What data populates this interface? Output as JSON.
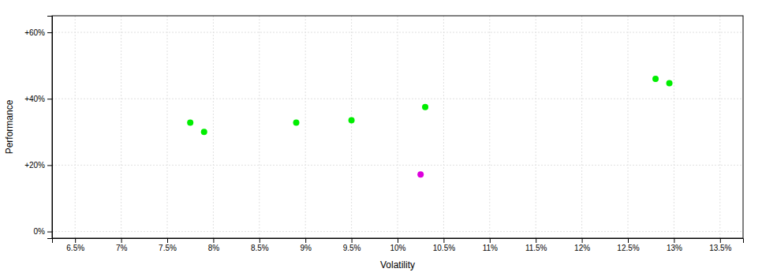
{
  "chart_data": {
    "type": "scatter",
    "xlabel": "Volatility",
    "ylabel": "Performance",
    "xlim": [
      0.0625,
      0.1375
    ],
    "ylim": [
      -0.02,
      0.65
    ],
    "xticks": [
      {
        "value": 0.065,
        "label": "6.5%"
      },
      {
        "value": 0.07,
        "label": "7%"
      },
      {
        "value": 0.075,
        "label": "7.5%"
      },
      {
        "value": 0.08,
        "label": "8%"
      },
      {
        "value": 0.085,
        "label": "8.5%"
      },
      {
        "value": 0.09,
        "label": "9%"
      },
      {
        "value": 0.095,
        "label": "9.5%"
      },
      {
        "value": 0.1,
        "label": "10%"
      },
      {
        "value": 0.105,
        "label": "10.5%"
      },
      {
        "value": 0.11,
        "label": "11%"
      },
      {
        "value": 0.115,
        "label": "11.5%"
      },
      {
        "value": 0.12,
        "label": "12%"
      },
      {
        "value": 0.125,
        "label": "12.5%"
      },
      {
        "value": 0.13,
        "label": "13%"
      },
      {
        "value": 0.135,
        "label": "13.5%"
      }
    ],
    "yticks": [
      {
        "value": 0.0,
        "label": "0%"
      },
      {
        "value": 0.2,
        "label": "+20%"
      },
      {
        "value": 0.4,
        "label": "+40%"
      },
      {
        "value": 0.6,
        "label": "+60%"
      }
    ],
    "grid": true,
    "series": [
      {
        "color": "#00ee00",
        "x": [
          0.0775,
          0.079,
          0.089,
          0.095,
          0.103,
          0.128,
          0.1295
        ],
        "values": [
          0.328,
          0.3,
          0.328,
          0.335,
          0.375,
          0.46,
          0.447
        ]
      },
      {
        "color": "#dd00dd",
        "x": [
          0.1025
        ],
        "values": [
          0.172
        ]
      }
    ]
  }
}
